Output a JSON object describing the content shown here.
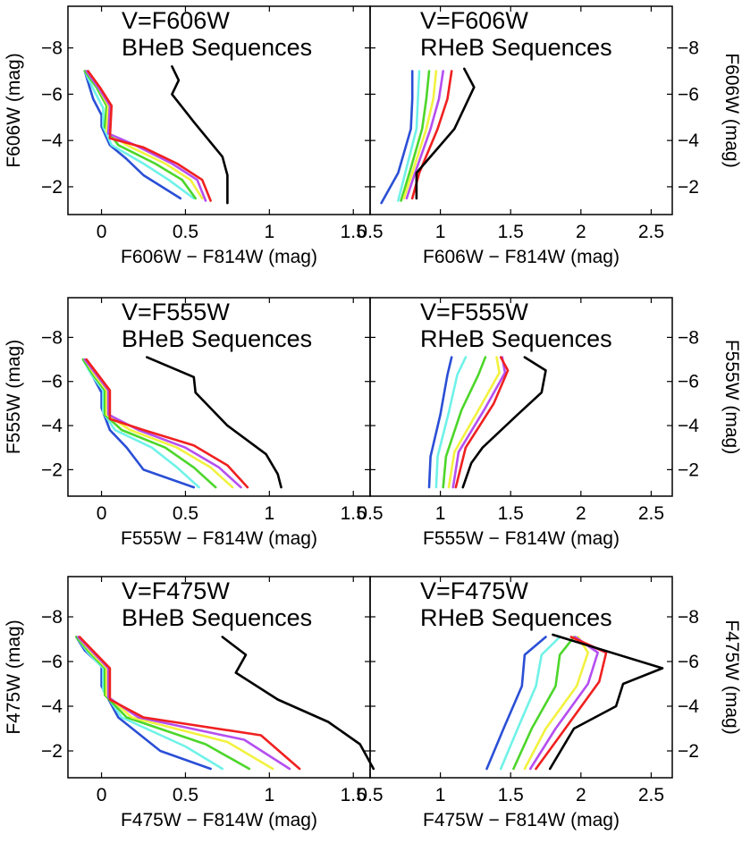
{
  "colors": {
    "blue": "#2a4fd6",
    "cyan": "#6ff2e8",
    "green": "#4cd62a",
    "yellow": "#f2f240",
    "magenta": "#b54ff0",
    "red": "#f02020",
    "black": "#000000"
  },
  "chart_data": [
    {
      "type": "line",
      "row": 0,
      "side": "left",
      "title": [
        "V=F606W",
        "BHeB Sequences"
      ],
      "xlabel": "F606W − F814W (mag)",
      "ylabel": "F606W (mag)",
      "xlim": [
        -0.2,
        1.6
      ],
      "ylim": [
        -0.8,
        -9.8
      ],
      "xticks": [
        0,
        0.5,
        1,
        1.5
      ],
      "xtick_labels": [
        "0",
        "0.5",
        "1",
        "1.5"
      ],
      "yticks": [
        -2,
        -4,
        -6,
        -8
      ],
      "ytick_labels": [
        "−2",
        "−4",
        "−6",
        "−8"
      ],
      "series": [
        {
          "name": "blue",
          "color": "blue",
          "x": [
            -0.1,
            -0.05,
            0.0,
            0.0,
            0.05,
            0.15,
            0.25,
            0.47
          ],
          "y": [
            -7.0,
            -5.8,
            -5.1,
            -4.6,
            -3.8,
            -3.2,
            -2.5,
            -1.5
          ]
        },
        {
          "name": "cyan",
          "color": "cyan",
          "x": [
            -0.1,
            -0.04,
            0.01,
            0.01,
            0.06,
            0.25,
            0.4,
            0.55
          ],
          "y": [
            -7.0,
            -6.1,
            -5.4,
            -4.6,
            -3.8,
            -3.0,
            -2.3,
            -1.5
          ]
        },
        {
          "name": "green",
          "color": "green",
          "x": [
            -0.1,
            -0.03,
            0.03,
            0.02,
            0.1,
            0.32,
            0.48,
            0.56
          ],
          "y": [
            -7.0,
            -6.3,
            -5.5,
            -4.6,
            -3.8,
            -3.0,
            -2.3,
            -1.5
          ]
        },
        {
          "name": "yellow",
          "color": "yellow",
          "x": [
            -0.09,
            -0.02,
            0.04,
            0.03,
            0.15,
            0.38,
            0.53,
            0.6
          ],
          "y": [
            -7.0,
            -6.3,
            -5.5,
            -4.4,
            -3.8,
            -3.0,
            -2.3,
            -1.5
          ]
        },
        {
          "name": "magenta",
          "color": "magenta",
          "x": [
            -0.09,
            -0.02,
            0.05,
            0.04,
            0.2,
            0.42,
            0.57,
            0.62
          ],
          "y": [
            -7.0,
            -6.3,
            -5.5,
            -4.3,
            -3.8,
            -3.0,
            -2.3,
            -1.4
          ]
        },
        {
          "name": "red",
          "color": "red",
          "x": [
            -0.08,
            -0.01,
            0.06,
            0.05,
            0.25,
            0.45,
            0.6,
            0.65
          ],
          "y": [
            -7.0,
            -6.3,
            -5.5,
            -4.1,
            -3.7,
            -3.0,
            -2.3,
            -1.4
          ]
        },
        {
          "name": "black",
          "color": "black",
          "x": [
            0.42,
            0.46,
            0.42,
            0.55,
            0.72,
            0.75,
            0.75
          ],
          "y": [
            -7.2,
            -6.6,
            -6.0,
            -4.8,
            -3.3,
            -2.5,
            -1.3
          ]
        }
      ]
    },
    {
      "type": "line",
      "row": 0,
      "side": "right",
      "title": [
        "V=F606W",
        "RHeB Sequences"
      ],
      "xlabel": "F606W − F814W (mag)",
      "ylabel": "F606W (mag)",
      "xlim": [
        0.5,
        2.65
      ],
      "ylim": [
        -0.8,
        -9.8
      ],
      "xticks": [
        0.5,
        1,
        1.5,
        2,
        2.5
      ],
      "xtick_labels": [
        "0.5",
        "1",
        "1.5",
        "2",
        "2.5"
      ],
      "yticks": [
        -2,
        -4,
        -6,
        -8
      ],
      "ytick_labels": [
        "−2",
        "−4",
        "−6",
        "−8"
      ],
      "series": [
        {
          "name": "blue",
          "color": "blue",
          "x": [
            0.8,
            0.8,
            0.79,
            0.7,
            0.58
          ],
          "y": [
            -7.0,
            -5.8,
            -4.5,
            -2.6,
            -1.3
          ]
        },
        {
          "name": "cyan",
          "color": "cyan",
          "x": [
            0.85,
            0.84,
            0.83,
            0.75,
            0.7
          ],
          "y": [
            -7.0,
            -5.8,
            -4.5,
            -2.6,
            -1.4
          ]
        },
        {
          "name": "green",
          "color": "green",
          "x": [
            0.92,
            0.9,
            0.87,
            0.78,
            0.72
          ],
          "y": [
            -7.0,
            -5.8,
            -4.5,
            -2.6,
            -1.4
          ]
        },
        {
          "name": "yellow",
          "color": "yellow",
          "x": [
            0.97,
            0.95,
            0.9,
            0.8,
            0.74
          ],
          "y": [
            -7.0,
            -5.8,
            -4.5,
            -2.6,
            -1.5
          ]
        },
        {
          "name": "magenta",
          "color": "magenta",
          "x": [
            1.02,
            0.99,
            0.93,
            0.82,
            0.76
          ],
          "y": [
            -7.0,
            -5.8,
            -4.5,
            -2.6,
            -1.5
          ]
        },
        {
          "name": "red",
          "color": "red",
          "x": [
            1.08,
            1.05,
            0.98,
            0.85,
            0.8
          ],
          "y": [
            -7.0,
            -5.8,
            -4.5,
            -2.6,
            -1.5
          ]
        },
        {
          "name": "black",
          "color": "black",
          "x": [
            1.17,
            1.24,
            1.1,
            0.83,
            0.83
          ],
          "y": [
            -7.1,
            -6.3,
            -4.5,
            -2.6,
            -1.5
          ]
        }
      ]
    },
    {
      "type": "line",
      "row": 1,
      "side": "left",
      "title": [
        "V=F555W",
        "BHeB Sequences"
      ],
      "xlabel": "F555W − F814W (mag)",
      "ylabel": "F555W (mag)",
      "xlim": [
        -0.2,
        1.6
      ],
      "ylim": [
        -0.8,
        -9.8
      ],
      "xticks": [
        0,
        0.5,
        1,
        1.5
      ],
      "xtick_labels": [
        "0",
        "0.5",
        "1",
        "1.5"
      ],
      "yticks": [
        -2,
        -4,
        -6,
        -8
      ],
      "ytick_labels": [
        "−2",
        "−4",
        "−6",
        "−8"
      ],
      "series": [
        {
          "name": "blue",
          "color": "blue",
          "x": [
            -0.1,
            -0.05,
            0.0,
            0.0,
            0.05,
            0.15,
            0.25,
            0.55
          ],
          "y": [
            -7.0,
            -6.2,
            -5.5,
            -4.8,
            -3.8,
            -3.0,
            -2.0,
            -1.2
          ]
        },
        {
          "name": "cyan",
          "color": "cyan",
          "x": [
            -0.11,
            -0.06,
            0.01,
            0.01,
            0.08,
            0.3,
            0.45,
            0.58
          ],
          "y": [
            -7.0,
            -6.3,
            -5.6,
            -4.6,
            -3.8,
            -3.0,
            -2.1,
            -1.2
          ]
        },
        {
          "name": "green",
          "color": "green",
          "x": [
            -0.11,
            -0.05,
            0.02,
            0.02,
            0.12,
            0.38,
            0.55,
            0.68
          ],
          "y": [
            -7.0,
            -6.3,
            -5.6,
            -4.5,
            -3.8,
            -3.0,
            -2.1,
            -1.2
          ]
        },
        {
          "name": "yellow",
          "color": "yellow",
          "x": [
            -0.1,
            -0.04,
            0.03,
            0.03,
            0.17,
            0.45,
            0.65,
            0.78
          ],
          "y": [
            -7.0,
            -6.3,
            -5.6,
            -4.5,
            -3.8,
            -3.0,
            -2.1,
            -1.2
          ]
        },
        {
          "name": "magenta",
          "color": "magenta",
          "x": [
            -0.1,
            -0.03,
            0.04,
            0.04,
            0.22,
            0.5,
            0.7,
            0.83
          ],
          "y": [
            -7.0,
            -6.3,
            -5.6,
            -4.5,
            -3.8,
            -3.0,
            -2.1,
            -1.2
          ]
        },
        {
          "name": "red",
          "color": "red",
          "x": [
            -0.09,
            -0.02,
            0.05,
            0.05,
            0.25,
            0.55,
            0.75,
            0.87
          ],
          "y": [
            -7.0,
            -6.3,
            -5.6,
            -4.3,
            -3.8,
            -3.1,
            -2.2,
            -1.2
          ]
        },
        {
          "name": "black",
          "color": "black",
          "x": [
            0.27,
            0.55,
            0.56,
            0.75,
            0.98,
            1.05,
            1.07
          ],
          "y": [
            -7.1,
            -6.2,
            -5.5,
            -4.0,
            -2.7,
            -1.8,
            -1.2
          ]
        }
      ]
    },
    {
      "type": "line",
      "row": 1,
      "side": "right",
      "title": [
        "V=F555W",
        "RHeB Sequences"
      ],
      "xlabel": "F555W − F814W (mag)",
      "ylabel": "F555W (mag)",
      "xlim": [
        0.5,
        2.65
      ],
      "ylim": [
        -0.8,
        -9.8
      ],
      "xticks": [
        0.5,
        1,
        1.5,
        2,
        2.5
      ],
      "xtick_labels": [
        "0.5",
        "1",
        "1.5",
        "2",
        "2.5"
      ],
      "yticks": [
        -2,
        -4,
        -6,
        -8
      ],
      "ytick_labels": [
        "−2",
        "−4",
        "−6",
        "−8"
      ],
      "series": [
        {
          "name": "blue",
          "color": "blue",
          "x": [
            1.08,
            1.05,
            1.0,
            0.93,
            0.92
          ],
          "y": [
            -7.1,
            -6.3,
            -4.5,
            -2.6,
            -1.2
          ]
        },
        {
          "name": "cyan",
          "color": "cyan",
          "x": [
            1.18,
            1.12,
            1.06,
            0.98,
            0.97
          ],
          "y": [
            -7.1,
            -6.3,
            -4.6,
            -2.6,
            -1.2
          ]
        },
        {
          "name": "green",
          "color": "green",
          "x": [
            1.32,
            1.27,
            1.15,
            1.04,
            1.02
          ],
          "y": [
            -7.1,
            -6.3,
            -4.7,
            -2.6,
            -1.2
          ]
        },
        {
          "name": "yellow",
          "color": "yellow",
          "x": [
            1.4,
            1.42,
            1.28,
            1.1,
            1.06
          ],
          "y": [
            -7.1,
            -6.4,
            -4.8,
            -2.8,
            -1.2
          ]
        },
        {
          "name": "magenta",
          "color": "magenta",
          "x": [
            1.44,
            1.46,
            1.32,
            1.13,
            1.09
          ],
          "y": [
            -7.1,
            -6.4,
            -4.8,
            -2.8,
            -1.2
          ]
        },
        {
          "name": "red",
          "color": "red",
          "x": [
            1.43,
            1.48,
            1.38,
            1.18,
            1.11
          ],
          "y": [
            -7.1,
            -6.5,
            -5.0,
            -3.0,
            -1.2
          ]
        },
        {
          "name": "black",
          "color": "black",
          "x": [
            1.6,
            1.75,
            1.72,
            1.55,
            1.3,
            1.22,
            1.16
          ],
          "y": [
            -7.1,
            -6.5,
            -5.5,
            -4.5,
            -3.0,
            -2.3,
            -1.2
          ]
        }
      ]
    },
    {
      "type": "line",
      "row": 2,
      "side": "left",
      "title": [
        "V=F475W",
        "BHeB Sequences"
      ],
      "xlabel": "F475W − F814W (mag)",
      "ylabel": "F475W (mag)",
      "xlim": [
        -0.2,
        1.6
      ],
      "ylim": [
        -0.8,
        -9.8
      ],
      "xticks": [
        0,
        0.5,
        1,
        1.5
      ],
      "xtick_labels": [
        "0",
        "0.5",
        "1",
        "1.5"
      ],
      "yticks": [
        -2,
        -4,
        -6,
        -8
      ],
      "ytick_labels": [
        "−2",
        "−4",
        "−6",
        "−8"
      ],
      "series": [
        {
          "name": "blue",
          "color": "blue",
          "x": [
            -0.15,
            -0.1,
            0.0,
            0.0,
            0.1,
            0.35,
            0.65
          ],
          "y": [
            -7.1,
            -6.5,
            -5.8,
            -4.9,
            -3.5,
            -2.0,
            -1.2
          ]
        },
        {
          "name": "cyan",
          "color": "cyan",
          "x": [
            -0.15,
            -0.08,
            0.01,
            0.01,
            0.12,
            0.5,
            0.72
          ],
          "y": [
            -7.1,
            -6.4,
            -5.7,
            -4.7,
            -3.5,
            -2.2,
            -1.2
          ]
        },
        {
          "name": "green",
          "color": "green",
          "x": [
            -0.15,
            -0.07,
            0.02,
            0.02,
            0.15,
            0.62,
            0.88
          ],
          "y": [
            -7.1,
            -6.4,
            -5.7,
            -4.5,
            -3.5,
            -2.3,
            -1.2
          ]
        },
        {
          "name": "yellow",
          "color": "yellow",
          "x": [
            -0.14,
            -0.06,
            0.03,
            0.03,
            0.18,
            0.75,
            1.02
          ],
          "y": [
            -7.1,
            -6.4,
            -5.7,
            -4.5,
            -3.5,
            -2.4,
            -1.2
          ]
        },
        {
          "name": "magenta",
          "color": "magenta",
          "x": [
            -0.14,
            -0.05,
            0.04,
            0.04,
            0.22,
            0.85,
            1.12
          ],
          "y": [
            -7.1,
            -6.4,
            -5.7,
            -4.4,
            -3.5,
            -2.5,
            -1.2
          ]
        },
        {
          "name": "red",
          "color": "red",
          "x": [
            -0.13,
            -0.04,
            0.05,
            0.05,
            0.25,
            0.95,
            1.18
          ],
          "y": [
            -7.1,
            -6.4,
            -5.7,
            -4.3,
            -3.5,
            -2.7,
            -1.2
          ]
        },
        {
          "name": "black",
          "color": "black",
          "x": [
            0.72,
            0.86,
            0.8,
            1.05,
            1.35,
            1.54,
            1.62
          ],
          "y": [
            -7.1,
            -6.3,
            -5.5,
            -4.3,
            -3.3,
            -2.3,
            -1.2
          ]
        }
      ]
    },
    {
      "type": "line",
      "row": 2,
      "side": "right",
      "title": [
        "V=F475W",
        "RHeB Sequences"
      ],
      "xlabel": "F475W − F814W (mag)",
      "ylabel": "F475W (mag)",
      "xlim": [
        0.5,
        2.65
      ],
      "ylim": [
        -0.8,
        -9.8
      ],
      "xticks": [
        0.5,
        1,
        1.5,
        2,
        2.5
      ],
      "xtick_labels": [
        "0.5",
        "1",
        "1.5",
        "2",
        "2.5"
      ],
      "yticks": [
        -2,
        -4,
        -6,
        -8
      ],
      "ytick_labels": [
        "−2",
        "−4",
        "−6",
        "−8"
      ],
      "series": [
        {
          "name": "blue",
          "color": "blue",
          "x": [
            1.75,
            1.6,
            1.58,
            1.45,
            1.33
          ],
          "y": [
            -7.1,
            -6.3,
            -4.9,
            -3.0,
            -1.2
          ]
        },
        {
          "name": "cyan",
          "color": "cyan",
          "x": [
            1.85,
            1.72,
            1.68,
            1.55,
            1.43
          ],
          "y": [
            -7.1,
            -6.3,
            -4.9,
            -3.0,
            -1.2
          ]
        },
        {
          "name": "green",
          "color": "green",
          "x": [
            1.95,
            1.85,
            1.82,
            1.65,
            1.52
          ],
          "y": [
            -7.1,
            -6.3,
            -4.9,
            -3.0,
            -1.2
          ]
        },
        {
          "name": "yellow",
          "color": "yellow",
          "x": [
            1.98,
            2.05,
            1.97,
            1.75,
            1.6
          ],
          "y": [
            -7.1,
            -6.4,
            -4.9,
            -3.0,
            -1.2
          ]
        },
        {
          "name": "magenta",
          "color": "magenta",
          "x": [
            1.96,
            2.12,
            2.05,
            1.82,
            1.64
          ],
          "y": [
            -7.1,
            -6.4,
            -5.0,
            -3.0,
            -1.2
          ]
        },
        {
          "name": "red",
          "color": "red",
          "x": [
            1.93,
            2.18,
            2.13,
            1.9,
            1.68
          ],
          "y": [
            -7.1,
            -6.4,
            -5.1,
            -3.1,
            -1.2
          ]
        },
        {
          "name": "black",
          "color": "black",
          "x": [
            1.8,
            2.58,
            2.3,
            2.25,
            1.95,
            1.78
          ],
          "y": [
            -7.2,
            -5.7,
            -5.0,
            -4.0,
            -3.0,
            -1.2
          ]
        }
      ]
    }
  ]
}
